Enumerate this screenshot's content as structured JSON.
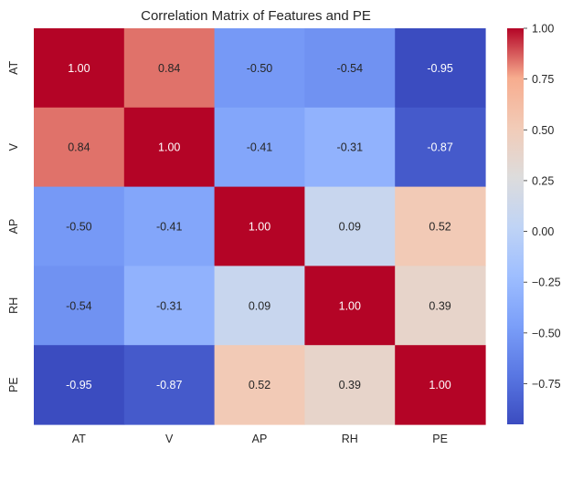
{
  "chart_data": {
    "type": "heatmap",
    "title": "Correlation Matrix of Features and PE",
    "xlabel": "",
    "ylabel": "",
    "x_categories": [
      "AT",
      "V",
      "AP",
      "RH",
      "PE"
    ],
    "y_categories": [
      "AT",
      "V",
      "AP",
      "RH",
      "PE"
    ],
    "values": [
      [
        1.0,
        0.84,
        -0.5,
        -0.54,
        -0.95
      ],
      [
        0.84,
        1.0,
        -0.41,
        -0.31,
        -0.87
      ],
      [
        -0.5,
        -0.41,
        1.0,
        0.09,
        0.52
      ],
      [
        -0.54,
        -0.31,
        0.09,
        1.0,
        0.39
      ],
      [
        -0.95,
        -0.87,
        0.52,
        0.39,
        1.0
      ]
    ],
    "cell_labels": [
      [
        "1.00",
        "0.84",
        "-0.50",
        "-0.54",
        "-0.95"
      ],
      [
        "0.84",
        "1.00",
        "-0.41",
        "-0.31",
        "-0.87"
      ],
      [
        "-0.50",
        "-0.41",
        "1.00",
        "0.09",
        "0.52"
      ],
      [
        "-0.54",
        "-0.31",
        "0.09",
        "1.00",
        "0.39"
      ],
      [
        "-0.95",
        "-0.87",
        "0.52",
        "0.39",
        "1.00"
      ]
    ],
    "colormap": "coolwarm",
    "colorbar": {
      "range": [
        -0.95,
        1.0
      ],
      "ticks": [
        -0.75,
        -0.5,
        -0.25,
        0.0,
        0.25,
        0.5,
        0.75,
        1.0
      ],
      "tick_labels": [
        "−0.75",
        "−0.50",
        "−0.25",
        "0.00",
        "0.25",
        "0.50",
        "0.75",
        "1.00"
      ]
    },
    "legend_position": "right",
    "grid": false
  }
}
